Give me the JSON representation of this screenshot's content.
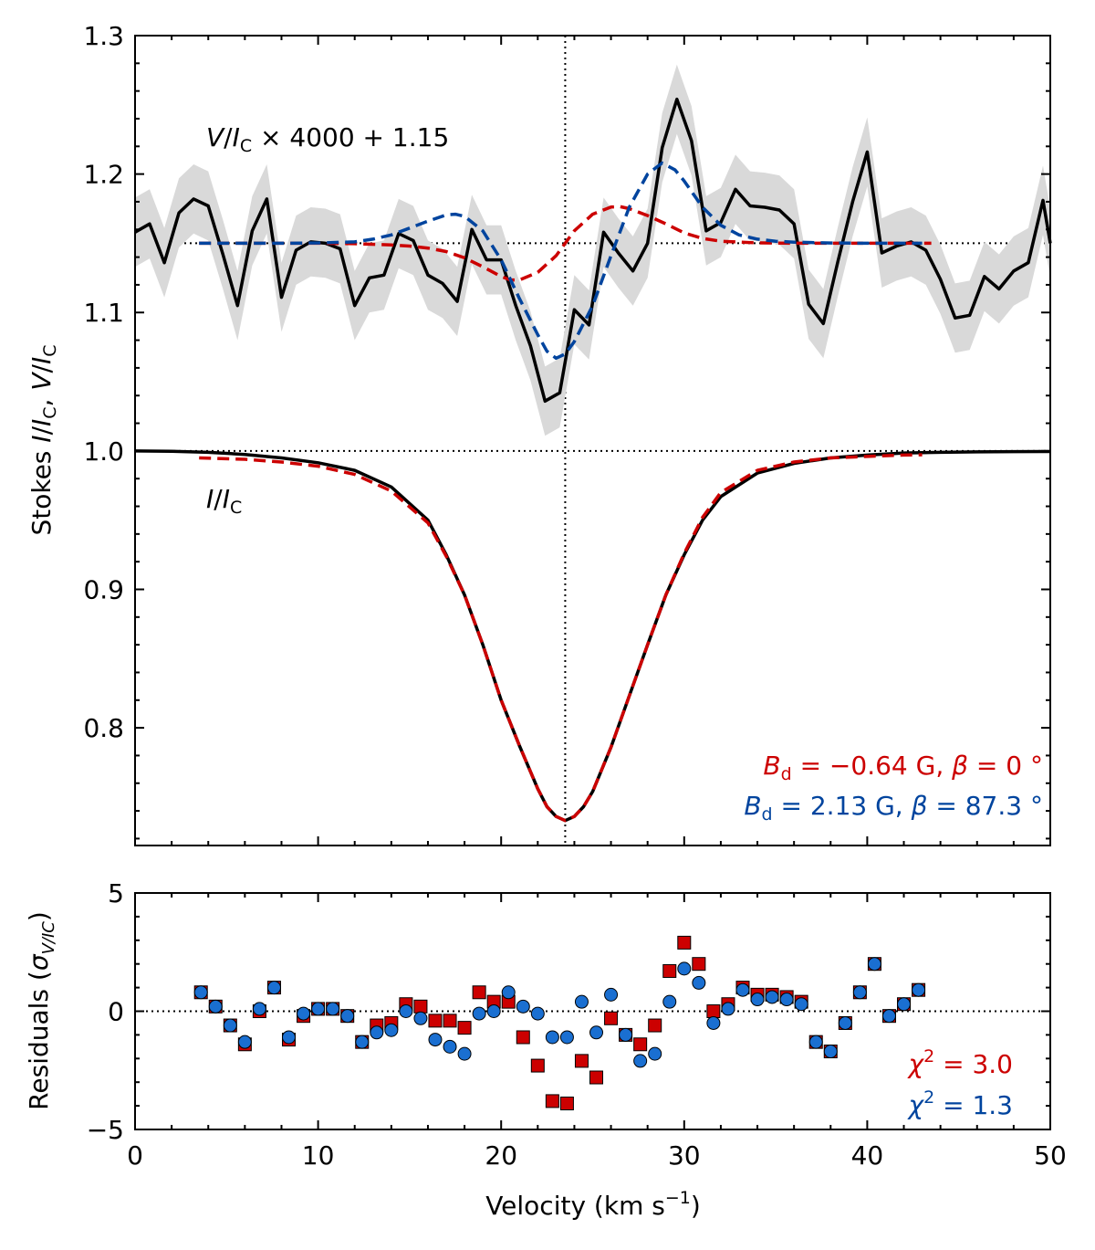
{
  "chart_data": [
    {
      "type": "line",
      "panel": "stokes",
      "ylabel_parts": {
        "stokes": "Stokes ",
        "i": "I",
        "slash1": "/",
        "ic1": "I",
        "c1": "C",
        "comma": ", ",
        "v": "V",
        "slash2": "/",
        "ic2": "I",
        "c2": "C"
      },
      "xlim": [
        0,
        50
      ],
      "ylim": [
        0.715,
        1.3
      ],
      "yticks": [
        0.8,
        0.9,
        1.0,
        1.1,
        1.2,
        1.3
      ],
      "ytick_labels": [
        "0.8",
        "0.9",
        "1.0",
        "1.1",
        "1.2",
        "1.3"
      ],
      "reference_lines": {
        "stokes_i_continuum": 1.0,
        "stokes_v_offset": 1.15,
        "line_center_velocity": 23.5
      },
      "annotations": {
        "v_label": {
          "v": "V",
          "slash": "/",
          "i": "I",
          "c": "C",
          "rest": " × 4000 + 1.15"
        },
        "i_label": {
          "i1": "I",
          "slash": "/",
          "i2": "I",
          "c": "C"
        },
        "fit_red": {
          "b": "B",
          "d": "d",
          "rest1": " = −0.64 G, ",
          "beta": "β",
          "rest2": " = 0 °"
        },
        "fit_blue": {
          "b": "B",
          "d": "d",
          "rest1": " = 2.13 G, ",
          "beta": "β",
          "rest2": " = 87.3 °"
        }
      },
      "series": [
        {
          "name": "Stokes V observed",
          "style": "solid",
          "color": "#000000",
          "x": [
            0,
            0.8,
            1.6,
            2.4,
            3.2,
            4.0,
            4.8,
            5.6,
            6.4,
            7.2,
            8.0,
            8.8,
            9.6,
            10.4,
            11.2,
            12.0,
            12.8,
            13.6,
            14.4,
            15.2,
            16.0,
            16.8,
            17.6,
            18.4,
            19.2,
            20.0,
            20.8,
            21.6,
            22.4,
            23.2,
            24.0,
            24.8,
            25.6,
            26.4,
            27.2,
            28.0,
            28.8,
            29.6,
            30.4,
            31.2,
            32.0,
            32.8,
            33.6,
            34.4,
            35.2,
            36.0,
            36.8,
            37.6,
            38.4,
            39.2,
            40.0,
            40.8,
            41.6,
            42.4,
            43.2,
            44.0,
            44.8,
            45.6,
            46.4,
            47.2,
            48.0,
            48.8,
            49.6,
            50.0
          ],
          "y": [
            1.158,
            1.164,
            1.136,
            1.172,
            1.182,
            1.177,
            1.142,
            1.105,
            1.159,
            1.182,
            1.111,
            1.145,
            1.151,
            1.15,
            1.146,
            1.105,
            1.125,
            1.127,
            1.157,
            1.152,
            1.127,
            1.121,
            1.108,
            1.16,
            1.138,
            1.138,
            1.105,
            1.076,
            1.036,
            1.042,
            1.102,
            1.091,
            1.158,
            1.143,
            1.13,
            1.15,
            1.219,
            1.254,
            1.224,
            1.159,
            1.165,
            1.189,
            1.177,
            1.176,
            1.174,
            1.164,
            1.106,
            1.092,
            1.137,
            1.18,
            1.216,
            1.143,
            1.148,
            1.151,
            1.145,
            1.124,
            1.096,
            1.098,
            1.126,
            1.117,
            1.13,
            1.136,
            1.181,
            1.15
          ]
        },
        {
          "name": "Stokes V uncertainty band",
          "style": "band",
          "color": "#d9d9d9",
          "halfwidth": 0.025
        },
        {
          "name": "Stokes I observed",
          "style": "solid",
          "color": "#000000",
          "x": [
            0,
            2,
            4,
            6,
            8,
            10,
            12,
            14,
            16,
            17,
            18,
            19,
            20,
            21,
            22,
            22.5,
            23,
            23.5,
            24,
            24.5,
            25,
            26,
            27,
            28,
            29,
            30,
            31,
            32,
            34,
            36,
            38,
            40,
            42,
            44,
            46,
            48,
            50
          ],
          "y": [
            1.0,
            0.9998,
            0.999,
            0.9975,
            0.995,
            0.9915,
            0.986,
            0.974,
            0.95,
            0.925,
            0.896,
            0.86,
            0.82,
            0.787,
            0.756,
            0.743,
            0.736,
            0.733,
            0.736,
            0.743,
            0.754,
            0.786,
            0.823,
            0.86,
            0.896,
            0.925,
            0.95,
            0.967,
            0.984,
            0.991,
            0.995,
            0.997,
            0.9985,
            0.999,
            0.9993,
            0.9995,
            0.9996
          ]
        },
        {
          "name": "Stokes I fit",
          "style": "dashed",
          "color": "#cc0000",
          "x": [
            3.5,
            6,
            8,
            10,
            12,
            14,
            16,
            17,
            18,
            19,
            20,
            21,
            22,
            22.5,
            23,
            23.5,
            24,
            24.5,
            25,
            26,
            27,
            28,
            29,
            30,
            31,
            32,
            34,
            36,
            38,
            40,
            42,
            43
          ],
          "y": [
            0.995,
            0.994,
            0.992,
            0.989,
            0.983,
            0.971,
            0.948,
            0.924,
            0.896,
            0.86,
            0.82,
            0.787,
            0.756,
            0.743,
            0.736,
            0.733,
            0.736,
            0.743,
            0.754,
            0.786,
            0.823,
            0.86,
            0.896,
            0.926,
            0.952,
            0.97,
            0.986,
            0.992,
            0.995,
            0.996,
            0.997,
            0.9972
          ]
        },
        {
          "name": "Stokes V fit, B_d = -0.64 G, beta = 0",
          "style": "dashed",
          "color": "#cc0000",
          "x": [
            3.5,
            6,
            8,
            10,
            12,
            14,
            15,
            16,
            17,
            18,
            19,
            20,
            20.5,
            21,
            22,
            23,
            23.5,
            24,
            25,
            26,
            26.5,
            27,
            28,
            29,
            30,
            31,
            32,
            34,
            36,
            38,
            40,
            42,
            43.5
          ],
          "y": [
            1.15,
            1.15,
            1.15,
            1.15,
            1.1497,
            1.1488,
            1.148,
            1.1465,
            1.144,
            1.1395,
            1.133,
            1.126,
            1.1235,
            1.1235,
            1.129,
            1.141,
            1.15,
            1.159,
            1.171,
            1.1762,
            1.1765,
            1.175,
            1.17,
            1.164,
            1.1575,
            1.1535,
            1.1515,
            1.1503,
            1.15,
            1.15,
            1.15,
            1.15,
            1.15
          ]
        },
        {
          "name": "Stokes V fit, B_d = 2.13 G, beta = 87.3",
          "style": "dashed",
          "color": "#00449e",
          "x": [
            3.5,
            6,
            8,
            10,
            12,
            13,
            14,
            15,
            16,
            17,
            17.5,
            18,
            19,
            20,
            21,
            22,
            22.5,
            23,
            23.5,
            24,
            25,
            26,
            27,
            28,
            28.8,
            29.5,
            30,
            31,
            32,
            33,
            34,
            35,
            36,
            38,
            40,
            42,
            43
          ],
          "y": [
            1.15,
            1.15,
            1.15,
            1.1502,
            1.151,
            1.153,
            1.156,
            1.161,
            1.166,
            1.1705,
            1.171,
            1.1695,
            1.159,
            1.138,
            1.11,
            1.084,
            1.072,
            1.067,
            1.07,
            1.079,
            1.105,
            1.141,
            1.176,
            1.2,
            1.208,
            1.203,
            1.195,
            1.176,
            1.163,
            1.156,
            1.153,
            1.1515,
            1.1508,
            1.1502,
            1.15,
            1.15,
            1.15
          ]
        }
      ]
    },
    {
      "type": "scatter",
      "panel": "residuals",
      "xlabel_parts": {
        "text": "Velocity (km s",
        "exp": "−1",
        "close": ")"
      },
      "ylabel_parts": {
        "text": "Residuals (",
        "sigma": "σ",
        "sub": "V/IC",
        "close": ")"
      },
      "xlim": [
        0,
        50
      ],
      "ylim": [
        -5,
        5
      ],
      "xticks": [
        0,
        10,
        20,
        30,
        40,
        50
      ],
      "xtick_labels": [
        "0",
        "10",
        "20",
        "30",
        "40",
        "50"
      ],
      "yticks": [
        -5,
        0,
        5
      ],
      "ytick_labels": [
        "−5",
        "0",
        "5"
      ],
      "annotations": {
        "chi_red": {
          "chi": "χ",
          "exp": "2",
          "rest": " = 3.0"
        },
        "chi_blue": {
          "chi": "χ",
          "exp": "2",
          "rest": " = 1.3"
        }
      },
      "series": [
        {
          "name": "Residuals, dipole beta = 0 (chi2 = 3.0)",
          "marker": "square",
          "color": "#cc0000",
          "x": [
            3.6,
            4.4,
            5.2,
            6.0,
            6.8,
            7.6,
            8.4,
            9.2,
            10.0,
            10.8,
            11.6,
            12.4,
            13.2,
            14.0,
            14.8,
            15.6,
            16.4,
            17.2,
            18.0,
            18.8,
            19.6,
            20.4,
            21.2,
            22.0,
            22.8,
            23.6,
            24.4,
            25.2,
            26.0,
            26.8,
            27.6,
            28.4,
            29.2,
            30.0,
            30.8,
            31.6,
            32.4,
            33.2,
            34.0,
            34.8,
            35.6,
            36.4,
            37.2,
            38.0,
            38.8,
            39.6,
            40.4,
            41.2,
            42.0,
            42.8
          ],
          "y": [
            0.8,
            0.2,
            -0.6,
            -1.4,
            0.0,
            1.0,
            -1.2,
            -0.2,
            0.1,
            0.1,
            -0.2,
            -1.3,
            -0.6,
            -0.5,
            0.3,
            0.2,
            -0.4,
            -0.4,
            -0.7,
            0.8,
            0.4,
            0.4,
            -1.1,
            -2.3,
            -3.8,
            -3.9,
            -2.1,
            -2.8,
            -0.3,
            -1.0,
            -1.4,
            -0.6,
            1.7,
            2.9,
            2.0,
            0.0,
            0.3,
            1.0,
            0.7,
            0.7,
            0.6,
            0.4,
            -1.3,
            -1.7,
            -0.5,
            0.8,
            2.0,
            -0.2,
            0.3,
            0.9
          ]
        },
        {
          "name": "Residuals, dipole beta = 87.3 (chi2 = 1.3)",
          "marker": "circle",
          "color": "#1a6fd1",
          "x": [
            3.6,
            4.4,
            5.2,
            6.0,
            6.8,
            7.6,
            8.4,
            9.2,
            10.0,
            10.8,
            11.6,
            12.4,
            13.2,
            14.0,
            14.8,
            15.6,
            16.4,
            17.2,
            18.0,
            18.8,
            19.6,
            20.4,
            21.2,
            22.0,
            22.8,
            23.6,
            24.4,
            25.2,
            26.0,
            26.8,
            27.6,
            28.4,
            29.2,
            30.0,
            30.8,
            31.6,
            32.4,
            33.2,
            34.0,
            34.8,
            35.6,
            36.4,
            37.2,
            38.0,
            38.8,
            39.6,
            40.4,
            41.2,
            42.0,
            42.8
          ],
          "y": [
            0.8,
            0.2,
            -0.6,
            -1.3,
            0.1,
            1.0,
            -1.1,
            -0.1,
            0.1,
            0.1,
            -0.2,
            -1.3,
            -0.9,
            -0.8,
            0.0,
            -0.3,
            -1.2,
            -1.5,
            -1.8,
            -0.1,
            0.0,
            0.8,
            0.2,
            -0.1,
            -1.1,
            -1.1,
            0.4,
            -0.9,
            0.7,
            -1.0,
            -2.1,
            -1.8,
            0.4,
            1.8,
            1.2,
            -0.5,
            0.1,
            0.9,
            0.5,
            0.6,
            0.5,
            0.3,
            -1.3,
            -1.7,
            -0.5,
            0.8,
            2.0,
            -0.2,
            0.3,
            0.9
          ]
        }
      ]
    }
  ]
}
